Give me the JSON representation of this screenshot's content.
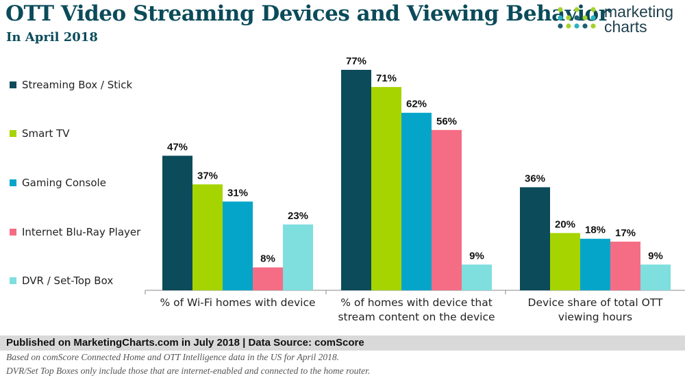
{
  "header": {
    "title": "OTT Video Streaming Devices and Viewing Behavior",
    "subtitle": "In April 2018"
  },
  "logo": {
    "text": "marketing\ncharts",
    "dot_colors": [
      "#2bb3c0",
      "#a6d22e",
      "#1e5f74"
    ]
  },
  "chart_data": {
    "type": "bar",
    "categories": [
      [
        "% of Wi-Fi homes with device"
      ],
      [
        "% of homes with device that",
        "stream content on the device"
      ],
      [
        "Device share of total OTT",
        "viewing hours"
      ]
    ],
    "series": [
      {
        "name": "Streaming Box / Stick",
        "color": "#0b4b5a",
        "values": [
          47,
          77,
          36
        ]
      },
      {
        "name": "Smart TV",
        "color": "#a6d400",
        "values": [
          37,
          71,
          20
        ]
      },
      {
        "name": "Gaming Console",
        "color": "#04a5c9",
        "values": [
          31,
          62,
          18
        ]
      },
      {
        "name": "Internet Blu-Ray Player",
        "color": "#f46d85",
        "values": [
          8,
          56,
          17
        ]
      },
      {
        "name": "DVR / Set-Top Box",
        "color": "#7fdede",
        "values": [
          23,
          9,
          9
        ]
      }
    ],
    "value_suffix": "%",
    "ylim": [
      0,
      77
    ],
    "grid": false,
    "legend_position": "left"
  },
  "footer": {
    "published": "Published on MarketingCharts.com in July 2018 | Data Source: comScore",
    "note1": "Based on comScore Connected Home and OTT Intelligence data in the US for April 2018.",
    "note2": "DVR/Set Top Boxes only include those that are internet-enabled and connected to the home router."
  }
}
